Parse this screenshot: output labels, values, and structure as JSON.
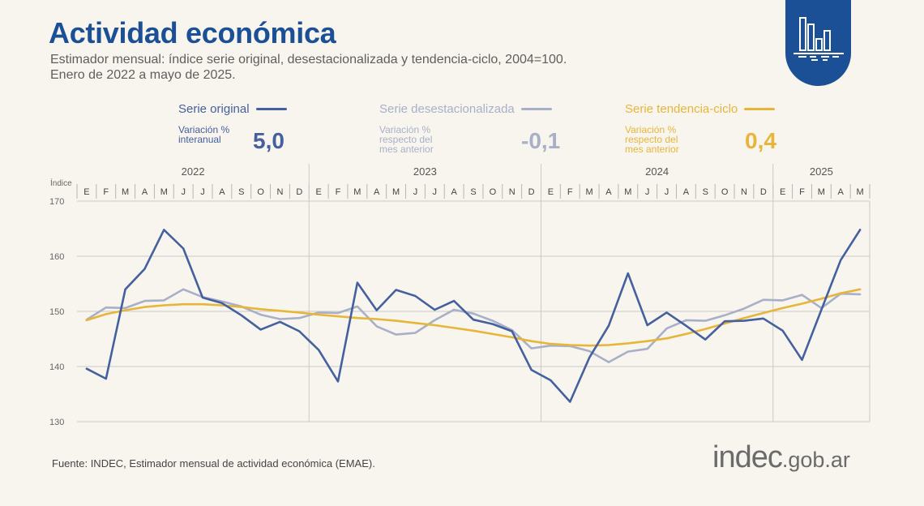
{
  "title": "Actividad económica",
  "subtitle": [
    "Estimador mensual: índice serie original, desestacionalizada y tendencia-ciclo, 2004=100.",
    "Enero de 2022 a mayo de 2025."
  ],
  "legend": {
    "original": {
      "name": "Serie original",
      "var_label": [
        "Variación %",
        "interanual"
      ],
      "value": "5,0",
      "color": "#44609e"
    },
    "desest": {
      "name": "Serie desestacionalizada",
      "var_label": [
        "Variación %",
        "respecto del",
        "mes anterior"
      ],
      "value": "-0,1",
      "color": "#a8b0c9"
    },
    "tendencia": {
      "name": "Serie tendencia-ciclo",
      "var_label": [
        "Variación %",
        "respecto del",
        "mes anterior"
      ],
      "value": "0,4",
      "color": "#e7b53a"
    }
  },
  "chart_data": {
    "type": "line",
    "ylabel": "Índice",
    "ylim": [
      130,
      170
    ],
    "yticks": [
      130,
      140,
      150,
      160,
      170
    ],
    "years": [
      {
        "label": "2022",
        "start": 0,
        "months": 12
      },
      {
        "label": "2023",
        "start": 12,
        "months": 12
      },
      {
        "label": "2024",
        "start": 24,
        "months": 12
      },
      {
        "label": "2025",
        "start": 36,
        "months": 5
      }
    ],
    "month_labels": [
      "E",
      "F",
      "M",
      "A",
      "M",
      "J",
      "J",
      "A",
      "S",
      "O",
      "N",
      "D",
      "E",
      "F",
      "M",
      "A",
      "M",
      "J",
      "J",
      "A",
      "S",
      "O",
      "N",
      "D",
      "E",
      "F",
      "M",
      "A",
      "M",
      "J",
      "J",
      "A",
      "S",
      "O",
      "N",
      "D",
      "E",
      "F",
      "M",
      "A",
      "M"
    ],
    "series": [
      {
        "name": "Serie original",
        "color": "#44609e",
        "values": [
          139.6,
          137.8,
          154.0,
          157.7,
          164.8,
          161.4,
          152.5,
          151.5,
          149.3,
          146.7,
          148.1,
          146.4,
          143.0,
          137.3,
          155.2,
          150.2,
          153.9,
          152.8,
          150.3,
          151.9,
          148.5,
          147.7,
          146.4,
          139.4,
          137.5,
          133.6,
          141.6,
          147.4,
          156.9,
          147.5,
          149.8,
          147.4,
          144.9,
          148.2,
          148.3,
          148.7,
          146.5,
          141.2,
          150.3,
          159.3,
          164.8
        ]
      },
      {
        "name": "Serie desestacionalizada",
        "color": "#a8b0c9",
        "values": [
          148.5,
          150.7,
          150.6,
          151.9,
          152.0,
          154.0,
          152.6,
          151.8,
          150.9,
          149.4,
          148.6,
          148.8,
          149.8,
          149.7,
          150.9,
          147.3,
          145.8,
          146.1,
          148.4,
          150.3,
          149.6,
          148.3,
          146.6,
          143.3,
          143.8,
          143.7,
          142.8,
          140.8,
          142.7,
          143.2,
          146.9,
          148.4,
          148.3,
          149.3,
          150.5,
          152.1,
          152.0,
          153.0,
          150.6,
          153.2,
          153.1
        ]
      },
      {
        "name": "Serie tendencia-ciclo",
        "color": "#e7b53a",
        "values": [
          148.4,
          149.5,
          150.2,
          150.8,
          151.1,
          151.3,
          151.3,
          151.1,
          150.8,
          150.4,
          150.1,
          149.8,
          149.4,
          149.1,
          148.8,
          148.6,
          148.3,
          147.9,
          147.5,
          147.0,
          146.5,
          145.9,
          145.3,
          144.6,
          144.1,
          143.9,
          143.8,
          143.9,
          144.2,
          144.6,
          145.1,
          145.9,
          146.8,
          147.8,
          148.8,
          149.7,
          150.6,
          151.4,
          152.3,
          153.3,
          154.0
        ]
      }
    ]
  },
  "source": "Fuente: INDEC, Estimador mensual de actividad económica (EMAE).",
  "logo": {
    "main": "indec",
    "suffix": ".gob.ar"
  },
  "badge_icon": "chart-icon"
}
